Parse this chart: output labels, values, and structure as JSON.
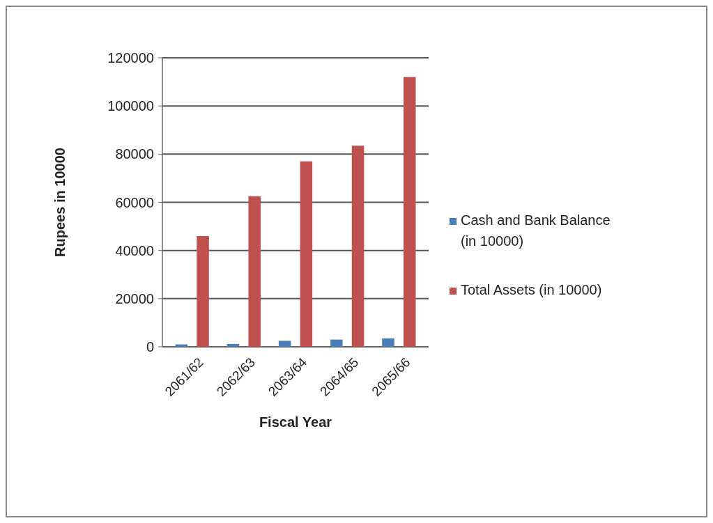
{
  "chart_data": {
    "type": "bar",
    "xlabel": "Fiscal Year",
    "ylabel": "Rupees in 10000",
    "categories": [
      "2061/62",
      "2062/63",
      "2063/64",
      "2064/65",
      "2065/66"
    ],
    "series": [
      {
        "name": "Cash and Bank Balance (in 10000)",
        "color": "#4a7ebb",
        "values": [
          1000,
          1200,
          2500,
          3000,
          3500
        ]
      },
      {
        "name": "Total Assets (in 10000)",
        "color": "#c0504d",
        "values": [
          46000,
          62500,
          77000,
          83500,
          112000
        ]
      }
    ],
    "ylim": [
      0,
      120000
    ],
    "yticks": [
      0,
      20000,
      40000,
      60000,
      80000,
      100000,
      120000
    ],
    "grid": "y",
    "legend": "right"
  }
}
